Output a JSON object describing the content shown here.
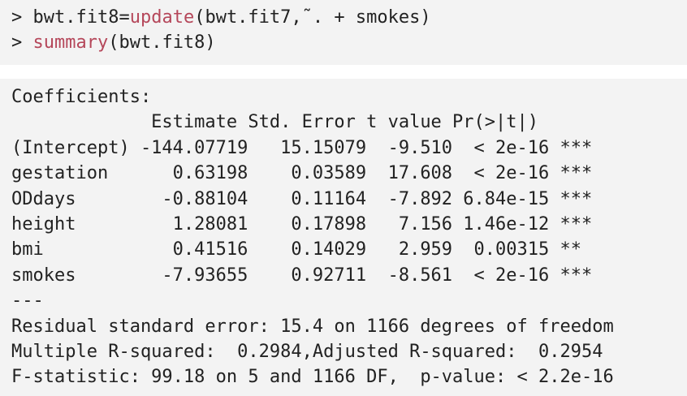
{
  "code": {
    "line1": {
      "prompt": "> ",
      "pre": "bwt.fit8=",
      "fn": "update",
      "post": "(bwt.fit7,˜. + smokes)"
    },
    "line2": {
      "prompt": "> ",
      "fn": "summary",
      "post": "(bwt.fit8)"
    }
  },
  "output": {
    "coefficients_label": "Coefficients:",
    "header": "             Estimate Std. Error t value Pr(>|t|)",
    "rows": [
      "(Intercept) -144.07719   15.15079  -9.510  < 2e-16 ***",
      "gestation      0.63198    0.03589  17.608  < 2e-16 ***",
      "ODdays        -0.88104    0.11164  -7.892 6.84e-15 ***",
      "height         1.28081    0.17898   7.156 1.46e-12 ***",
      "bmi            0.41516    0.14029   2.959  0.00315 **",
      "smokes        -7.93655    0.92711  -8.561  < 2e-16 ***"
    ],
    "separator": "---",
    "residual": "Residual standard error: 15.4 on 1166 degrees of freedom",
    "rsquared": "Multiple R-squared:  0.2984,Adjusted R-squared:  0.2954",
    "fstat": "F-statistic: 99.18 on 5 and 1166 DF,  p-value: < 2.2e-16"
  }
}
